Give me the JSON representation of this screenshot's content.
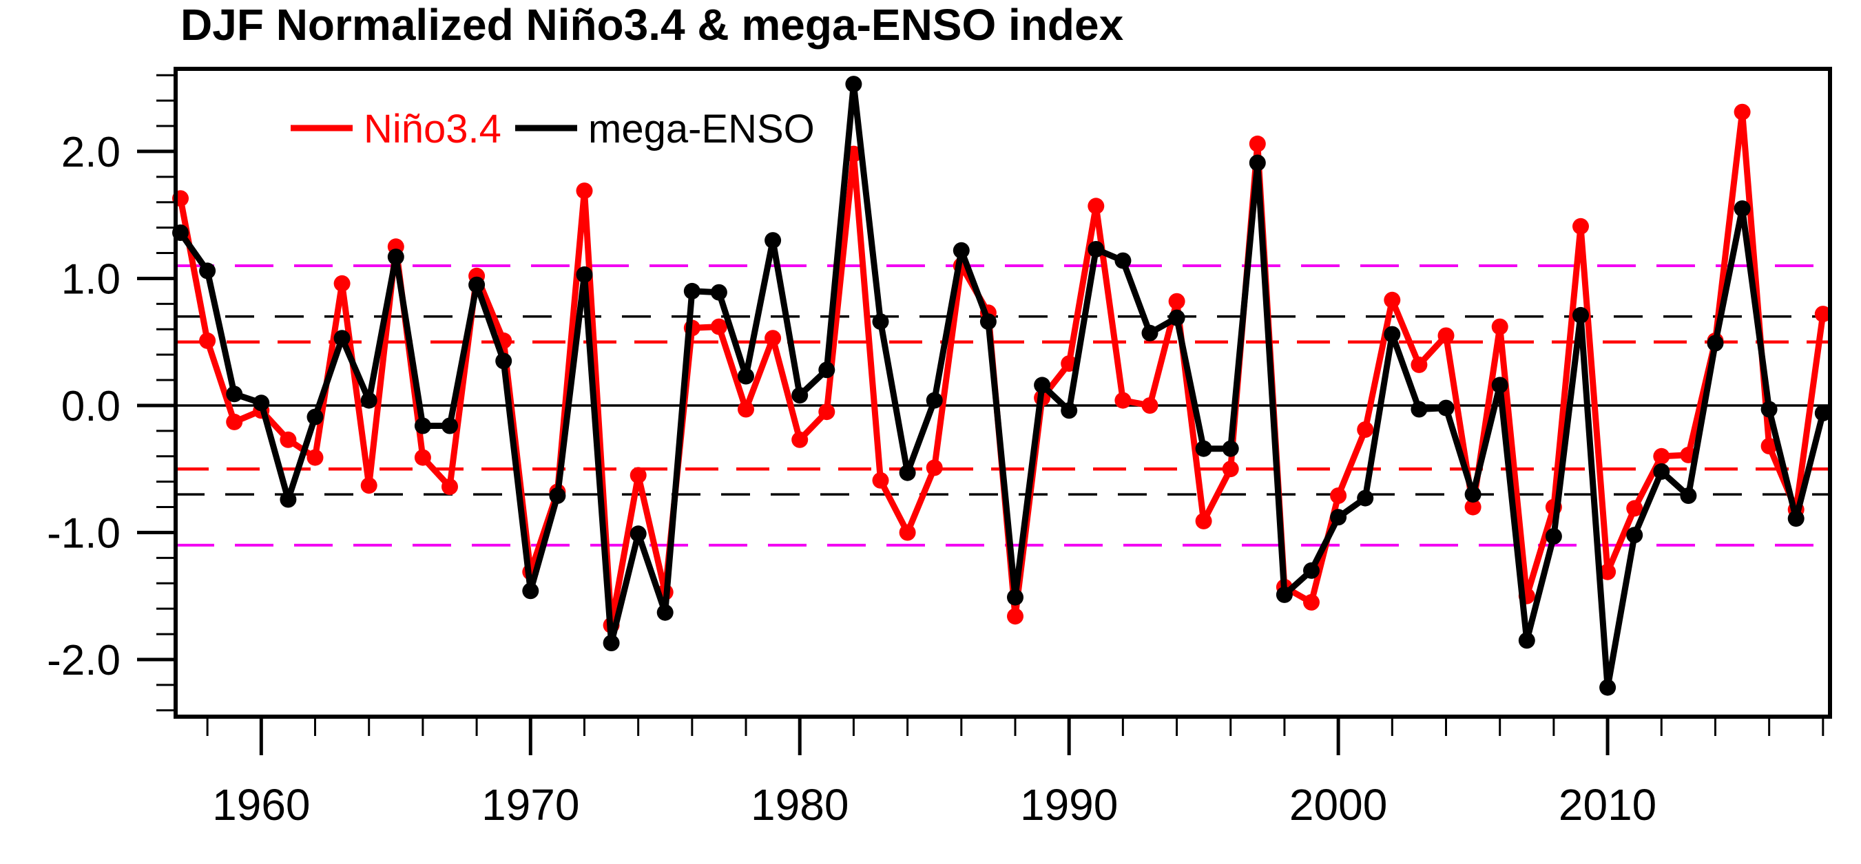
{
  "title": "DJF Normalized Niño3.4 & mega-ENSO index",
  "colors": {
    "nino34": "#ff0000",
    "mega_enso": "#000000",
    "threshold_0_5": "#ff0000",
    "threshold_0_7": "#000000",
    "threshold_1_1": "#f200f2",
    "zero_line": "#000000",
    "frame": "#000000",
    "background": "#ffffff"
  },
  "legend": {
    "position": "top-left-inside",
    "items": [
      {
        "label": "Niño3.4",
        "color": "#ff0000"
      },
      {
        "label": "mega-ENSO",
        "color": "#000000"
      }
    ]
  },
  "chart_data": {
    "type": "line",
    "title": "DJF Normalized Niño3.4 & mega-ENSO index",
    "xlabel": "",
    "ylabel": "",
    "grid": false,
    "xlim": [
      1956.82,
      2018.26
    ],
    "ylim": [
      -2.45,
      2.65
    ],
    "xticks_major": [
      1960,
      1970,
      1980,
      1990,
      2000,
      2010
    ],
    "xtick_labels": [
      "1960",
      "1970",
      "1980",
      "1990",
      "2000",
      "2010"
    ],
    "xticks_minor_step_years": 2,
    "yticks_major": [
      -2,
      -1,
      0,
      1,
      2
    ],
    "ytick_labels": [
      "-2.0",
      "-1.0",
      "0.0",
      "1.0",
      "2.0"
    ],
    "yticks_minor_step": 0.2,
    "reference_lines": [
      {
        "value": 1.1,
        "color": "#f200f2",
        "style": "dashed",
        "dash": "56 30",
        "width": 4
      },
      {
        "value": 0.7,
        "color": "#000000",
        "style": "dashed",
        "dash": "42 30",
        "width": 3.5
      },
      {
        "value": 0.5,
        "color": "#ff0000",
        "style": "dashed",
        "dash": "48 26",
        "width": 4.5
      },
      {
        "value": 0.0,
        "color": "#000000",
        "style": "solid",
        "dash": "",
        "width": 3.5
      },
      {
        "value": -0.5,
        "color": "#ff0000",
        "style": "dashed",
        "dash": "48 26",
        "width": 4.5
      },
      {
        "value": -0.7,
        "color": "#000000",
        "style": "dashed",
        "dash": "42 30",
        "width": 3.5
      },
      {
        "value": -1.1,
        "color": "#f200f2",
        "style": "dashed",
        "dash": "56 30",
        "width": 4
      }
    ],
    "x": [
      1957,
      1958,
      1959,
      1960,
      1961,
      1962,
      1963,
      1964,
      1965,
      1966,
      1967,
      1968,
      1969,
      1970,
      1971,
      1972,
      1973,
      1974,
      1975,
      1976,
      1977,
      1978,
      1979,
      1980,
      1981,
      1982,
      1983,
      1984,
      1985,
      1986,
      1987,
      1988,
      1989,
      1990,
      1991,
      1992,
      1993,
      1994,
      1995,
      1996,
      1997,
      1998,
      1999,
      2000,
      2001,
      2002,
      2003,
      2004,
      2005,
      2006,
      2007,
      2008,
      2009,
      2010,
      2011,
      2012,
      2013,
      2014,
      2015,
      2016,
      2017,
      2018
    ],
    "series": [
      {
        "name": "Niño3.4",
        "color": "#ff0000",
        "values": [
          1.63,
          0.51,
          -0.13,
          -0.04,
          -0.27,
          -0.41,
          0.96,
          -0.63,
          1.25,
          -0.41,
          -0.64,
          1.02,
          0.51,
          -1.31,
          -0.68,
          1.69,
          -1.73,
          -0.55,
          -1.47,
          0.61,
          0.62,
          -0.03,
          0.53,
          -0.27,
          -0.05,
          1.98,
          -0.59,
          -1.0,
          -0.49,
          1.1,
          0.73,
          -1.66,
          0.06,
          0.33,
          1.57,
          0.04,
          0.0,
          0.82,
          -0.91,
          -0.5,
          2.06,
          -1.43,
          -1.55,
          -0.71,
          -0.19,
          0.83,
          0.32,
          0.55,
          -0.8,
          0.62,
          -1.5,
          -0.8,
          1.41,
          -1.31,
          -0.81,
          -0.4,
          -0.39,
          0.51,
          2.31,
          -0.32,
          -0.82,
          0.72
        ]
      },
      {
        "name": "mega-ENSO",
        "color": "#000000",
        "values": [
          1.36,
          1.06,
          0.09,
          0.02,
          -0.74,
          -0.09,
          0.53,
          0.04,
          1.17,
          -0.16,
          -0.16,
          0.95,
          0.35,
          -1.46,
          -0.71,
          1.03,
          -1.87,
          -1.01,
          -1.63,
          0.9,
          0.89,
          0.23,
          1.3,
          0.08,
          0.28,
          2.53,
          0.66,
          -0.53,
          0.04,
          1.22,
          0.66,
          -1.51,
          0.16,
          -0.04,
          1.23,
          1.14,
          0.57,
          0.69,
          -0.34,
          -0.34,
          1.91,
          -1.49,
          -1.3,
          -0.88,
          -0.73,
          0.56,
          -0.03,
          -0.02,
          -0.7,
          0.16,
          -1.85,
          -1.03,
          0.71,
          -2.22,
          -1.02,
          -0.52,
          -0.71,
          0.49,
          1.55,
          -0.03,
          -0.89,
          -0.06
        ]
      }
    ]
  }
}
